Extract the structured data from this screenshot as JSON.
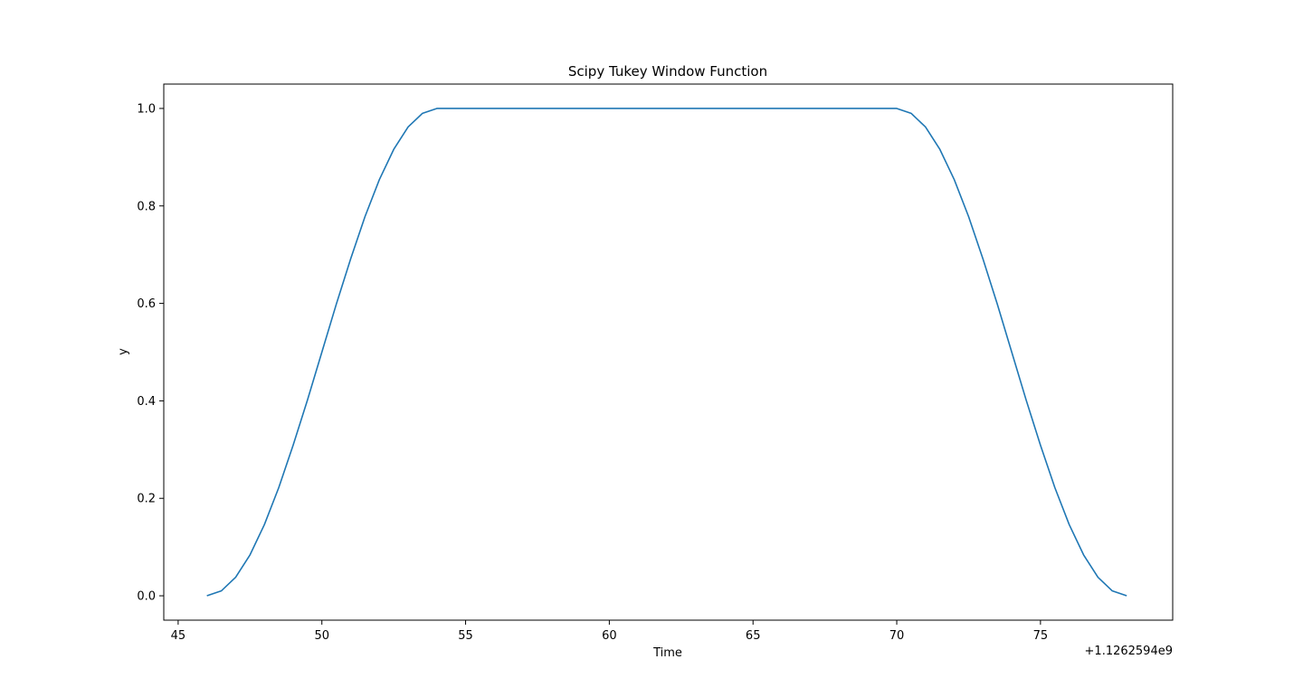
{
  "chart_data": {
    "type": "line",
    "title": "Scipy Tukey Window Function",
    "xlabel": "Time",
    "ylabel": "y",
    "x_offset_label": "+1.1262594e9",
    "xlim": [
      44.5,
      79.6
    ],
    "ylim": [
      -0.05,
      1.05
    ],
    "x_ticks": [
      45,
      50,
      55,
      60,
      65,
      70,
      75
    ],
    "x_tick_labels": [
      "45",
      "50",
      "55",
      "60",
      "65",
      "70",
      "75"
    ],
    "y_ticks": [
      0.0,
      0.2,
      0.4,
      0.6,
      0.8,
      1.0
    ],
    "y_tick_labels": [
      "0.0",
      "0.2",
      "0.4",
      "0.6",
      "0.8",
      "1.0"
    ],
    "grid": false,
    "series": [
      {
        "color": "#1f77b4",
        "x": [
          46.0,
          46.5,
          47.0,
          47.5,
          48.0,
          48.5,
          49.0,
          49.5,
          50.0,
          50.5,
          51.0,
          51.5,
          52.0,
          52.5,
          53.0,
          53.5,
          54.0,
          56.0,
          58.0,
          60.0,
          62.0,
          64.0,
          66.0,
          68.0,
          70.0,
          70.5,
          71.0,
          71.5,
          72.0,
          72.5,
          73.0,
          73.5,
          74.0,
          74.5,
          75.0,
          75.5,
          76.0,
          76.5,
          77.0,
          77.5,
          78.0
        ],
        "y": [
          0.0,
          0.01,
          0.038,
          0.084,
          0.146,
          0.222,
          0.309,
          0.402,
          0.5,
          0.598,
          0.691,
          0.778,
          0.854,
          0.916,
          0.962,
          0.99,
          1.0,
          1.0,
          1.0,
          1.0,
          1.0,
          1.0,
          1.0,
          1.0,
          1.0,
          0.99,
          0.962,
          0.916,
          0.854,
          0.778,
          0.691,
          0.598,
          0.5,
          0.402,
          0.309,
          0.222,
          0.146,
          0.084,
          0.038,
          0.01,
          0.0
        ]
      }
    ]
  }
}
